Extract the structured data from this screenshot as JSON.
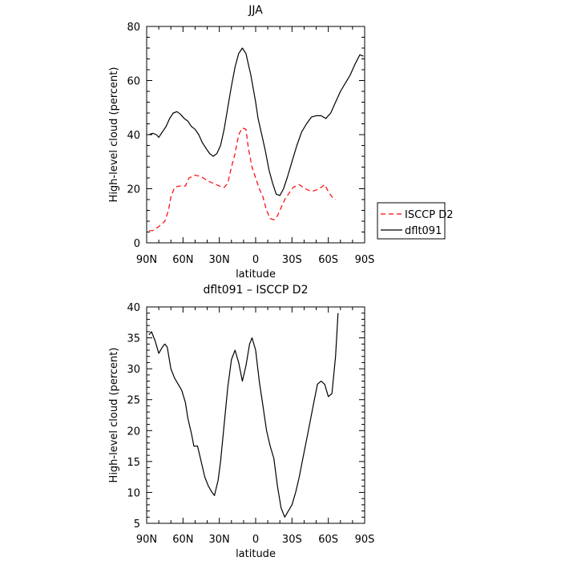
{
  "chart_data": [
    {
      "type": "line",
      "title": "JJA",
      "xlabel": "latitude",
      "ylabel": "High-level cloud (percent)",
      "xlim": [
        90,
        -90
      ],
      "ylim": [
        0,
        80
      ],
      "xticks": [
        90,
        60,
        30,
        0,
        -30,
        -60,
        -90
      ],
      "xticklabels": [
        "90N",
        "60N",
        "30N",
        "0",
        "30S",
        "60S",
        "90S"
      ],
      "yticks": [
        0,
        20,
        40,
        60,
        80
      ],
      "yticklabels": [
        "0",
        "20",
        "40",
        "60",
        "80"
      ],
      "legend": "right",
      "series": [
        {
          "name": "ISCCP D2",
          "color": "#ff0000",
          "dash": "dashed",
          "x": [
            88,
            85,
            80,
            75,
            72,
            70,
            67,
            63,
            58,
            55,
            50,
            45,
            40,
            35,
            30,
            26,
            23,
            20,
            17,
            14,
            11,
            8,
            6,
            3,
            0,
            -3,
            -6,
            -9,
            -12,
            -15,
            -18,
            -21,
            -24,
            -27,
            -31,
            -36,
            -41,
            -46,
            -50,
            -54,
            -57,
            -60,
            -63,
            -66
          ],
          "y": [
            4.5,
            4.5,
            6,
            8,
            12,
            17,
            20.5,
            21,
            21,
            24,
            25,
            24.5,
            23,
            22,
            21,
            20.5,
            22,
            28,
            33,
            40,
            42.5,
            42,
            35,
            28,
            24,
            20,
            17,
            12,
            9,
            8.5,
            10,
            13,
            16,
            18,
            20.5,
            21.5,
            20,
            19,
            19.5,
            20.5,
            21.5,
            19,
            17,
            16
          ]
        },
        {
          "name": "dflt091",
          "color": "#000000",
          "dash": "solid",
          "x": [
            88,
            85,
            82,
            80,
            77,
            74,
            71,
            68,
            65,
            62,
            59,
            56,
            53,
            50,
            47,
            44,
            41,
            38,
            35,
            32,
            29,
            26,
            23,
            20,
            17,
            14,
            11,
            8,
            6,
            4,
            2,
            0,
            -2,
            -5,
            -8,
            -11,
            -14,
            -17,
            -20,
            -23,
            -26,
            -30,
            -34,
            -38,
            -42,
            -46,
            -50,
            -54,
            -58,
            -62,
            -66,
            -70,
            -74,
            -78,
            -82,
            -86,
            -89
          ],
          "y": [
            40,
            40.5,
            40,
            39,
            41,
            43,
            46,
            48,
            48.5,
            47.5,
            46,
            45,
            43,
            42,
            40,
            37,
            35,
            33,
            32,
            33,
            36,
            42,
            50,
            58,
            65,
            70,
            72,
            70,
            66,
            62,
            57,
            52,
            46,
            40,
            34,
            27,
            22,
            18,
            17.5,
            20,
            24,
            30,
            36,
            41,
            44,
            46.5,
            47,
            47,
            46,
            48,
            52,
            56,
            59,
            62,
            66,
            69.5,
            69
          ]
        }
      ]
    },
    {
      "type": "line",
      "title": "dflt091 – ISCCP D2",
      "xlabel": "latitude",
      "ylabel": "High-level cloud (percent)",
      "xlim": [
        90,
        -90
      ],
      "ylim": [
        5,
        40
      ],
      "xticks": [
        90,
        60,
        30,
        0,
        -30,
        -60,
        -90
      ],
      "xticklabels": [
        "90N",
        "60N",
        "30N",
        "0",
        "30S",
        "60S",
        "90S"
      ],
      "yticks": [
        5,
        10,
        15,
        20,
        25,
        30,
        35,
        40
      ],
      "yticklabels": [
        "5",
        "10",
        "15",
        "20",
        "25",
        "30",
        "35",
        "40"
      ],
      "series": [
        {
          "color": "#000000",
          "dash": "solid",
          "x": [
            88,
            86,
            83,
            80,
            77,
            75,
            73,
            70,
            67,
            64,
            61,
            58,
            56,
            53,
            51,
            48,
            45,
            42,
            39,
            36,
            34,
            31,
            29,
            26,
            23,
            20,
            17,
            14,
            11,
            8,
            5,
            3,
            0,
            -3,
            -6,
            -9,
            -12,
            -15,
            -18,
            -21,
            -24,
            -27,
            -30,
            -33,
            -36,
            -39,
            -42,
            -45,
            -48,
            -51,
            -54,
            -57,
            -60,
            -63,
            -66,
            -68
          ],
          "y": [
            35.5,
            36,
            34.5,
            32.5,
            33.5,
            34,
            33.5,
            30,
            28.5,
            27.5,
            26.5,
            24.5,
            22,
            19.5,
            17.5,
            17.5,
            15,
            12.5,
            11,
            10,
            9.5,
            12,
            15,
            21,
            27,
            31.5,
            33,
            31,
            28,
            30.5,
            34,
            35,
            33,
            28,
            24,
            20,
            17.5,
            15.5,
            11,
            7.5,
            6,
            7,
            8,
            10,
            12.5,
            15.5,
            18.5,
            21.5,
            24.5,
            27.5,
            28,
            27.5,
            25.5,
            26,
            32,
            39
          ]
        }
      ]
    }
  ]
}
